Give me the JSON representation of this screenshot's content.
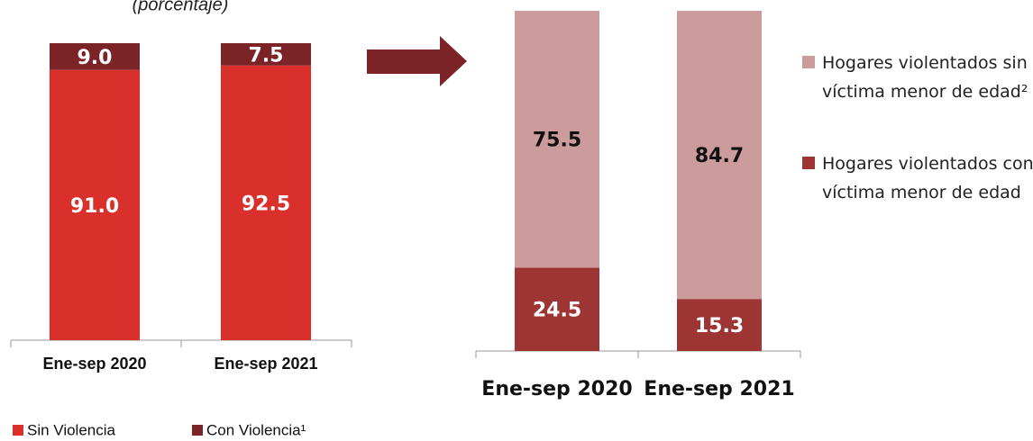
{
  "chart_data": [
    {
      "type": "stacked-bar",
      "subtitle": "(porcentaje)",
      "categories": [
        "Ene-sep 2020",
        "Ene-sep 2021"
      ],
      "series": [
        {
          "name": "Sin Violencia",
          "color": "#d9302c",
          "values": [
            91.0,
            92.5
          ],
          "value_labels": [
            "91.0",
            "92.5"
          ],
          "label_color": "#ffffff"
        },
        {
          "name": "Con Violencia¹",
          "color": "#7b2326",
          "values": [
            9.0,
            7.5
          ],
          "value_labels": [
            "9.0",
            "7.5"
          ],
          "label_color": "#ffffff"
        }
      ]
    },
    {
      "type": "stacked-bar",
      "categories": [
        "Ene-sep 2020",
        "Ene-sep 2021"
      ],
      "series": [
        {
          "name": "Hogares violentados con víctima menor de edad",
          "color": "#9e3535",
          "values": [
            24.5,
            15.3
          ],
          "value_labels": [
            "24.5",
            "15.3"
          ],
          "label_color": "#ffffff"
        },
        {
          "name": "Hogares violentados sin víctima menor de edad²",
          "color": "#cc9b9b",
          "values": [
            75.5,
            84.7
          ],
          "value_labels": [
            "75.5",
            "84.7"
          ],
          "label_color": "#111111"
        }
      ]
    }
  ]
}
